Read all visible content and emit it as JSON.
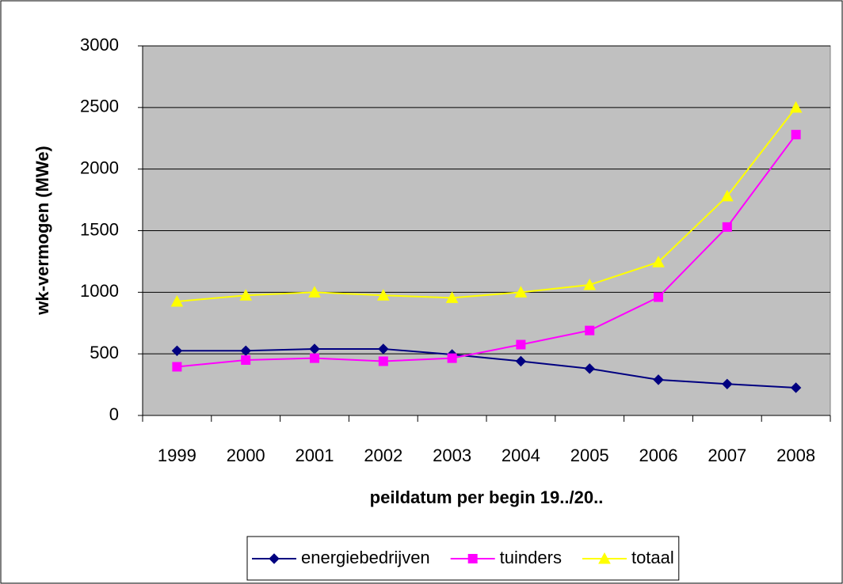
{
  "chart_data": {
    "type": "line",
    "x_label": "peildatum per begin 19../20..",
    "y_label": "wk-vermogen (MWe)",
    "categories": [
      "1999",
      "2000",
      "2001",
      "2002",
      "2003",
      "2004",
      "2005",
      "2006",
      "2007",
      "2008"
    ],
    "series": [
      {
        "name": "energiebedrijven",
        "color": "#000080",
        "marker": "diamond",
        "values": [
          525,
          525,
          540,
          540,
          495,
          440,
          380,
          290,
          255,
          225
        ]
      },
      {
        "name": "tuinders",
        "color": "#ff00ff",
        "marker": "square",
        "values": [
          395,
          450,
          465,
          440,
          465,
          575,
          690,
          960,
          1530,
          2280
        ]
      },
      {
        "name": "totaal",
        "color": "#ffff00",
        "marker": "triangle",
        "values": [
          925,
          975,
          1000,
          975,
          955,
          1000,
          1060,
          1245,
          1780,
          2500
        ]
      }
    ],
    "ylim": [
      0,
      3000
    ],
    "yticks": [
      0,
      500,
      1000,
      1500,
      2000,
      2500,
      3000
    ],
    "grid": true,
    "legend": "bottom"
  }
}
